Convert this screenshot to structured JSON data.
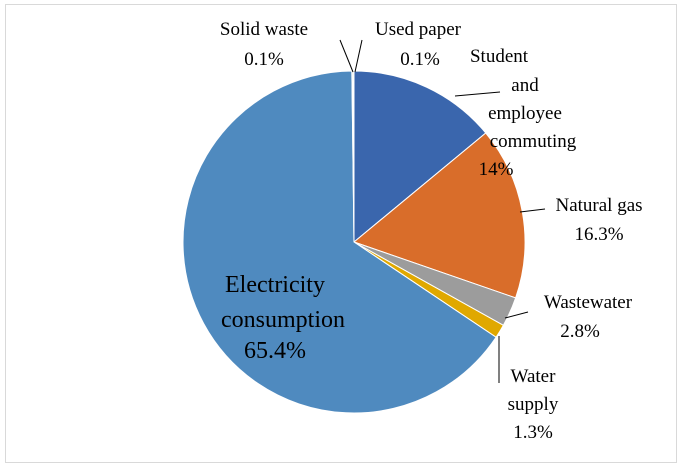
{
  "chart_data": {
    "type": "pie",
    "title": "",
    "start_angle_deg": 0,
    "direction": "clockwise",
    "slices": [
      {
        "label_lines": [
          "Student",
          "and",
          "employee",
          "commuting"
        ],
        "value": 14,
        "display": "14%",
        "color": "#3a66ad",
        "label_pos": "outside-right",
        "leader": true
      },
      {
        "label_lines": [
          "Natural gas"
        ],
        "value": 16.3,
        "display": "16.3%",
        "color": "#d96d2a",
        "label_pos": "outside-right",
        "leader": true
      },
      {
        "label_lines": [
          "Wastewater"
        ],
        "value": 2.8,
        "display": "2.8%",
        "color": "#9c9c9c",
        "label_pos": "outside-right",
        "leader": true
      },
      {
        "label_lines": [
          "Water",
          "supply"
        ],
        "value": 1.3,
        "display": "1.3%",
        "color": "#e0a800",
        "label_pos": "outside-bottom-right",
        "leader": true
      },
      {
        "label_lines": [
          "Electricity",
          "consumption"
        ],
        "value": 65.4,
        "display": "65.4%",
        "color": "#4f8abf",
        "label_pos": "inside",
        "leader": false
      },
      {
        "label_lines": [
          "Solid waste"
        ],
        "value": 0.1,
        "display": "0.1%",
        "color": "#2f4f7f",
        "label_pos": "outside-top-left",
        "leader": true
      },
      {
        "label_lines": [
          "Used paper"
        ],
        "value": 0.1,
        "display": "0.1%",
        "color": "#8aa84a",
        "label_pos": "outside-top-right",
        "leader": true
      }
    ]
  }
}
